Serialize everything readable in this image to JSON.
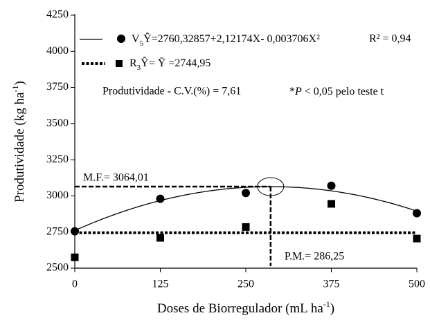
{
  "chart_data": {
    "type": "scatter",
    "x": [
      0,
      125,
      250,
      375,
      500
    ],
    "xlim": [
      0,
      500
    ],
    "xticks": [
      0,
      125,
      250,
      375,
      500
    ],
    "ylim": [
      2500,
      4250
    ],
    "yticks": [
      2500,
      2750,
      3000,
      3250,
      3500,
      3750,
      4000,
      4250
    ],
    "xlabel": {
      "text": "Doses de Biorregulador (mL ha",
      "superscript": "-1",
      "suffix": ")"
    },
    "ylabel": {
      "text": "Produtividade (kg ha",
      "superscript": "-1",
      "suffix": ")"
    },
    "series": [
      {
        "name": "V",
        "subscript": "5",
        "marker": "circle",
        "color": "#000000",
        "values": [
          2755,
          2980,
          3020,
          3070,
          2880
        ],
        "equation": "Ŷ=2760,32857+2,12174X- 0,003706X²",
        "r_squared": "R² = 0,94",
        "fit_coefficients": [
          2760.32857,
          2.12174,
          -0.003706
        ]
      },
      {
        "name": "R",
        "subscript": "3",
        "marker": "square",
        "color": "#000000",
        "values": [
          2575,
          2710,
          2785,
          2945,
          2705
        ],
        "equation": "Ŷ= Ȳ =2744,95",
        "mean": 2744.95
      }
    ],
    "max_yield": {
      "value": 3064.01,
      "label": "M.F.= 3064,01"
    },
    "max_dose": {
      "value": 286.25,
      "label": "P.M.= 286,25"
    },
    "cv_note": "Produtividade - C.V.(%) = 7,61",
    "significance_note": {
      "star": "*",
      "p": "P",
      "rest": " < 0,05 pelo teste t"
    }
  }
}
